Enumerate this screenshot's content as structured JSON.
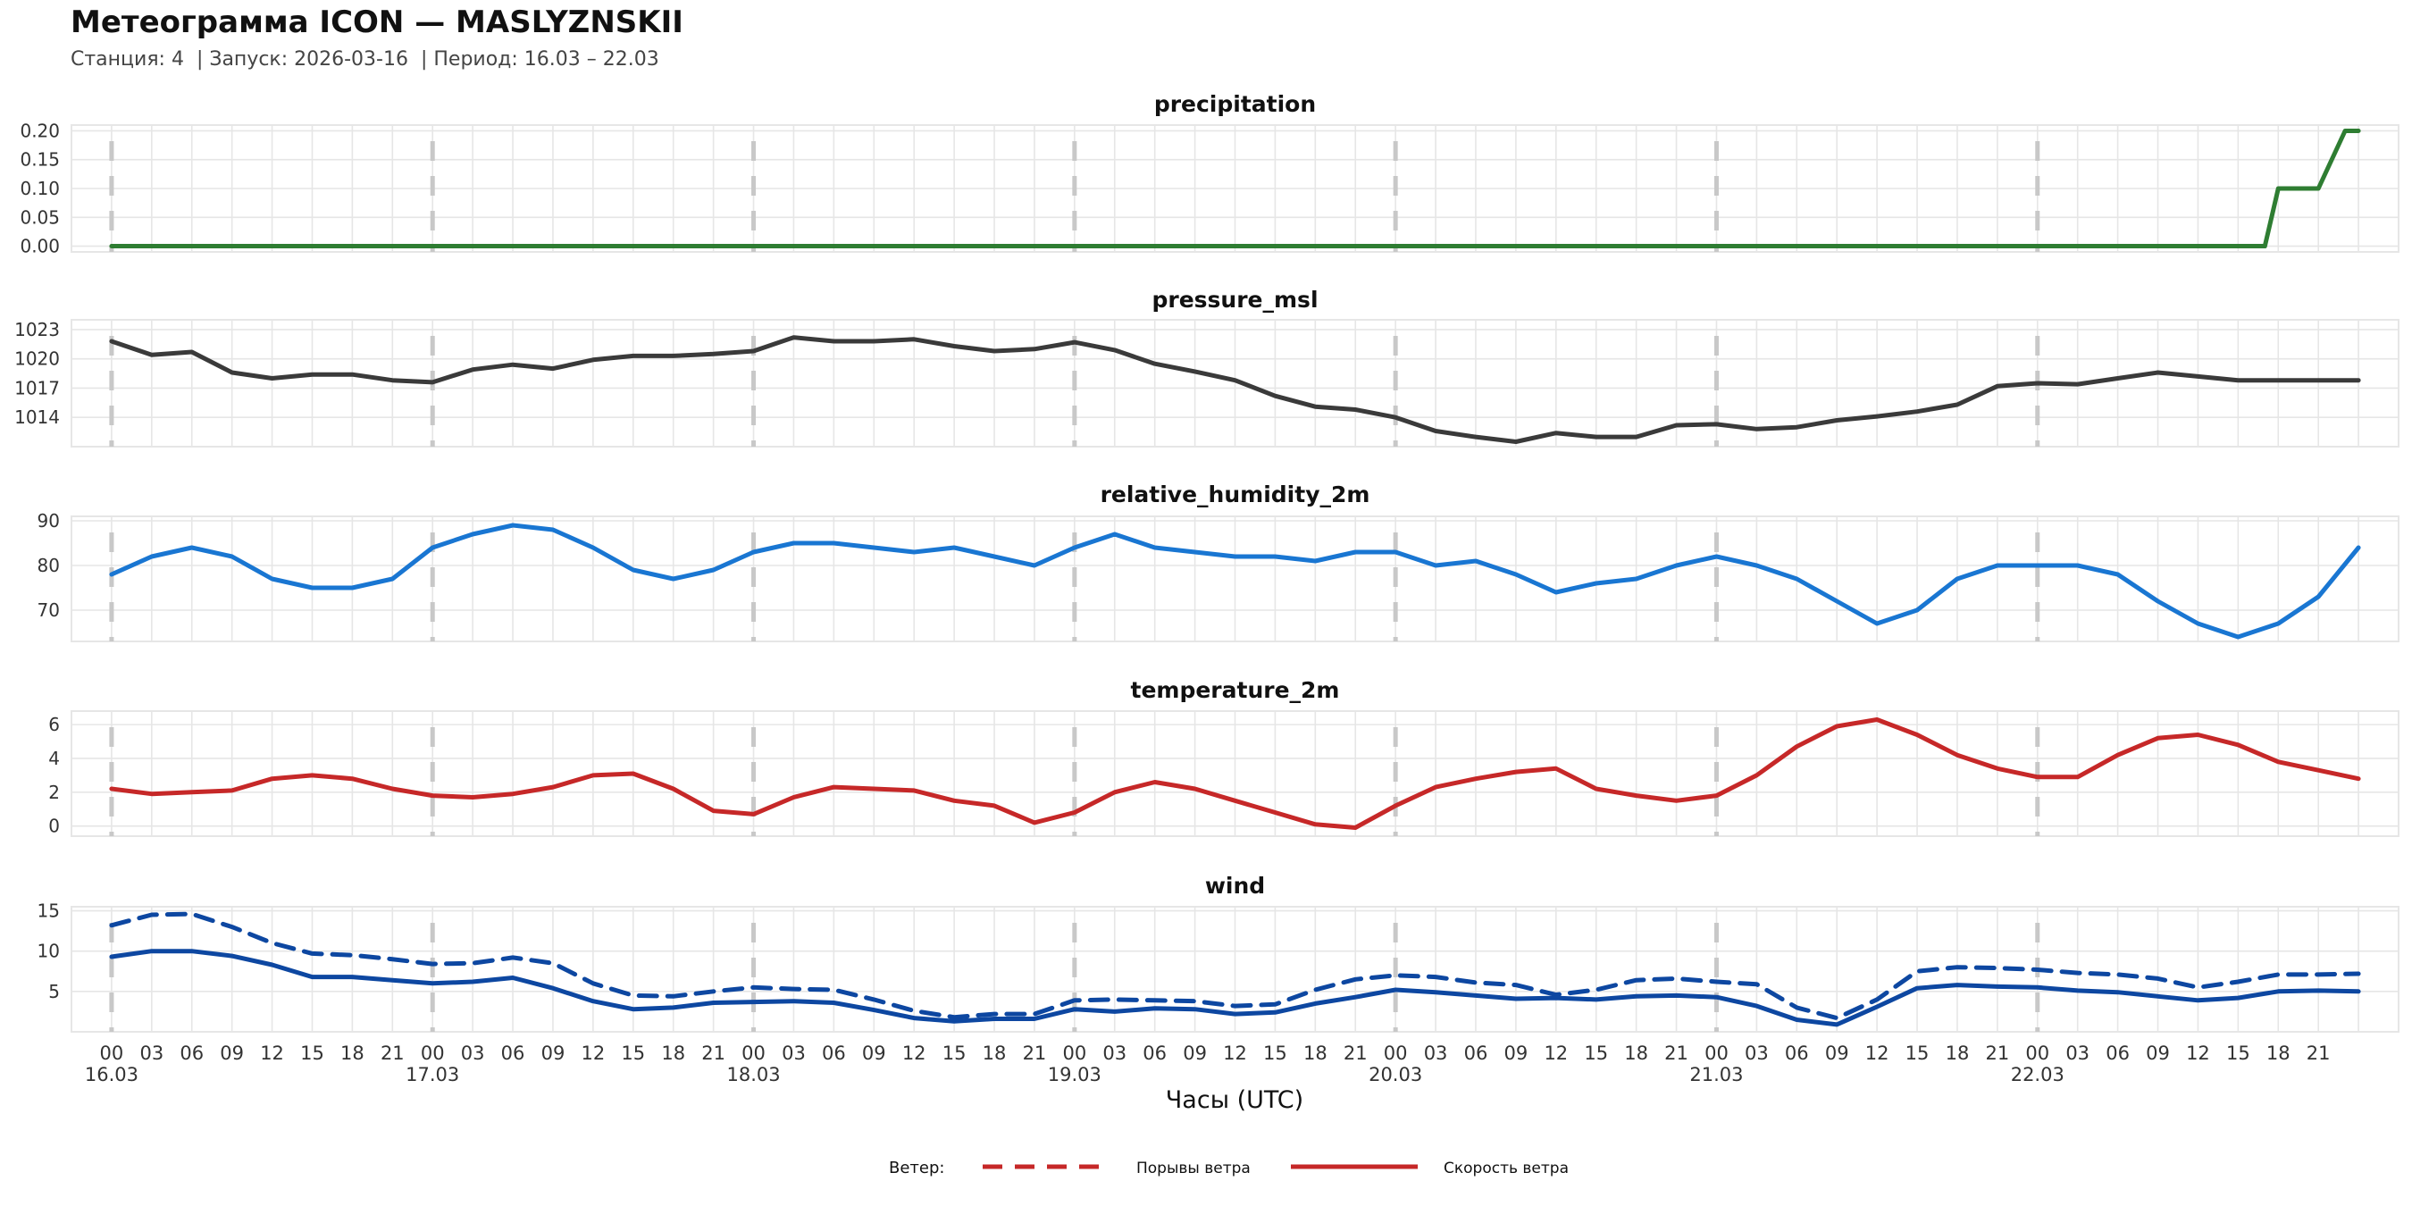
{
  "header": {
    "title": "Метеограмма ICON — MASLYZNSKII",
    "subtitle": "Станция: 4  | Запуск: 2026-03-16  | Период: 16.03 – 22.03"
  },
  "xaxis": {
    "label": "Часы (UTC)",
    "hour_ticks": [
      "00",
      "03",
      "06",
      "09",
      "12",
      "15",
      "18",
      "21",
      "00",
      "03",
      "06",
      "09",
      "12",
      "15",
      "18",
      "21",
      "00",
      "03",
      "06",
      "09",
      "12",
      "15",
      "18",
      "21",
      "00",
      "03",
      "06",
      "09",
      "12",
      "15",
      "18",
      "21",
      "00",
      "03",
      "06",
      "09",
      "12",
      "15",
      "18",
      "21",
      "00",
      "03",
      "06",
      "09",
      "12",
      "15",
      "18",
      "21",
      "00",
      "03",
      "06",
      "09",
      "12",
      "15",
      "18",
      "21"
    ],
    "date_labels": [
      "16.03",
      "17.03",
      "18.03",
      "19.03",
      "20.03",
      "21.03",
      "22.03"
    ]
  },
  "legend": {
    "title": "Ветер:",
    "items": [
      "Порывы ветра",
      "Скорость ветра"
    ]
  },
  "colors": {
    "precip": "#2e7d32",
    "pressure": "#3a3a3a",
    "humidity": "#1976d2",
    "temperature": "#c62828",
    "wind": "#0d47a1"
  },
  "chart_data": [
    {
      "type": "line",
      "title": "precipitation",
      "x_unit": "hours since 16.03 00 UTC",
      "ylim": [
        -0.01,
        0.21
      ],
      "yticks": [
        "0.00",
        "0.05",
        "0.10",
        "0.15",
        "0.20"
      ],
      "ytick_values": [
        0,
        0.05,
        0.1,
        0.15,
        0.2
      ],
      "series": [
        {
          "name": "precipitation",
          "x": [
            0,
            161,
            162,
            164,
            165,
            167,
            168
          ],
          "values": [
            0,
            0,
            0.1,
            0.1,
            0.1,
            0.2,
            0.2
          ]
        }
      ]
    },
    {
      "type": "line",
      "title": "pressure_msl",
      "ylim": [
        1011,
        1024
      ],
      "yticks": [
        "1014",
        "1017",
        "1020",
        "1023"
      ],
      "ytick_values": [
        1014,
        1017,
        1020,
        1023
      ],
      "series": [
        {
          "name": "pressure_msl",
          "x": [
            0,
            3,
            6,
            9,
            12,
            15,
            18,
            21,
            24,
            27,
            30,
            33,
            36,
            39,
            42,
            45,
            48,
            51,
            54,
            57,
            60,
            63,
            66,
            69,
            72,
            75,
            78,
            81,
            84,
            87,
            90,
            93,
            96,
            99,
            102,
            105,
            108,
            111,
            114,
            117,
            120,
            123,
            126,
            129,
            132,
            135,
            138,
            141,
            144,
            147,
            150,
            153,
            156,
            159,
            162,
            165,
            168
          ],
          "values": [
            1021.8,
            1020.4,
            1020.7,
            1018.6,
            1018.0,
            1018.4,
            1018.4,
            1017.8,
            1017.6,
            1018.9,
            1019.4,
            1019.0,
            1019.9,
            1020.3,
            1020.3,
            1020.5,
            1020.8,
            1022.2,
            1021.8,
            1021.8,
            1022.0,
            1021.3,
            1020.8,
            1021.0,
            1021.7,
            1020.9,
            1019.5,
            1018.7,
            1017.8,
            1016.2,
            1015.1,
            1014.8,
            1014.0,
            1012.6,
            1012.0,
            1011.5,
            1012.4,
            1012.0,
            1012.0,
            1013.2,
            1013.3,
            1012.8,
            1013.0,
            1013.7,
            1014.1,
            1014.6,
            1015.3,
            1017.2,
            1017.5,
            1017.4,
            1018.0,
            1018.6,
            1018.2,
            1017.8,
            1017.8,
            1017.8,
            1017.8
          ]
        }
      ]
    },
    {
      "type": "line",
      "title": "relative_humidity_2m",
      "ylim": [
        63,
        91
      ],
      "yticks": [
        "70",
        "80",
        "90"
      ],
      "ytick_values": [
        70,
        80,
        90
      ],
      "series": [
        {
          "name": "relative_humidity_2m",
          "x": [
            0,
            3,
            6,
            9,
            12,
            15,
            18,
            21,
            24,
            27,
            30,
            33,
            36,
            39,
            42,
            45,
            48,
            51,
            54,
            57,
            60,
            63,
            66,
            69,
            72,
            75,
            78,
            81,
            84,
            87,
            90,
            93,
            96,
            99,
            102,
            105,
            108,
            111,
            114,
            117,
            120,
            123,
            126,
            129,
            132,
            135,
            138,
            141,
            144,
            147,
            150,
            153,
            156,
            159,
            162,
            165,
            168
          ],
          "values": [
            78,
            82,
            84,
            82,
            77,
            75,
            75,
            77,
            84,
            87,
            89,
            88,
            84,
            79,
            77,
            79,
            83,
            85,
            85,
            84,
            83,
            84,
            82,
            80,
            84,
            87,
            84,
            83,
            82,
            82,
            81,
            83,
            83,
            80,
            81,
            78,
            74,
            76,
            77,
            80,
            82,
            80,
            77,
            72,
            67,
            70,
            77,
            80,
            80,
            80,
            78,
            72,
            67,
            64,
            67,
            73,
            84
          ]
        }
      ]
    },
    {
      "type": "line",
      "title": "temperature_2m",
      "ylim": [
        -0.6,
        6.8
      ],
      "yticks": [
        "0",
        "2",
        "4",
        "6"
      ],
      "ytick_values": [
        0,
        2,
        4,
        6
      ],
      "series": [
        {
          "name": "temperature_2m",
          "x": [
            0,
            3,
            6,
            9,
            12,
            15,
            18,
            21,
            24,
            27,
            30,
            33,
            36,
            39,
            42,
            45,
            48,
            51,
            54,
            57,
            60,
            63,
            66,
            69,
            72,
            75,
            78,
            81,
            84,
            87,
            90,
            93,
            96,
            99,
            102,
            105,
            108,
            111,
            114,
            117,
            120,
            123,
            126,
            129,
            132,
            135,
            138,
            141,
            144,
            147,
            150,
            153,
            156,
            159,
            162,
            165,
            168
          ],
          "values": [
            2.2,
            1.9,
            2.0,
            2.1,
            2.8,
            3.0,
            2.8,
            2.2,
            1.8,
            1.7,
            1.9,
            2.3,
            3.0,
            3.1,
            2.2,
            0.9,
            0.7,
            1.7,
            2.3,
            2.2,
            2.1,
            1.5,
            1.2,
            0.2,
            0.8,
            2.0,
            2.6,
            2.2,
            1.5,
            0.8,
            0.1,
            -0.1,
            1.2,
            2.3,
            2.8,
            3.2,
            3.4,
            2.2,
            1.8,
            1.5,
            1.8,
            3.0,
            4.7,
            5.9,
            6.3,
            5.4,
            4.2,
            3.4,
            2.9,
            2.9,
            4.2,
            5.2,
            5.4,
            4.8,
            3.8,
            3.3,
            2.8
          ]
        }
      ]
    },
    {
      "type": "line",
      "title": "wind",
      "ylim": [
        0,
        15.5
      ],
      "yticks": [
        "5",
        "10",
        "15"
      ],
      "ytick_values": [
        5,
        10,
        15
      ],
      "series": [
        {
          "name": "Порывы ветра",
          "dashed": true,
          "x": [
            0,
            3,
            6,
            9,
            12,
            15,
            18,
            21,
            24,
            27,
            30,
            33,
            36,
            39,
            42,
            45,
            48,
            51,
            54,
            57,
            60,
            63,
            66,
            69,
            72,
            75,
            78,
            81,
            84,
            87,
            90,
            93,
            96,
            99,
            102,
            105,
            108,
            111,
            114,
            117,
            120,
            123,
            126,
            129,
            132,
            135,
            138,
            141,
            144,
            147,
            150,
            153,
            156,
            159,
            162,
            165,
            168
          ],
          "values": [
            13.2,
            14.5,
            14.6,
            13.0,
            11.0,
            9.7,
            9.5,
            9.0,
            8.4,
            8.5,
            9.2,
            8.5,
            6.0,
            4.5,
            4.4,
            5.0,
            5.5,
            5.3,
            5.2,
            4.0,
            2.6,
            1.8,
            2.2,
            2.2,
            3.9,
            4.0,
            3.9,
            3.8,
            3.2,
            3.4,
            5.2,
            6.5,
            7.0,
            6.8,
            6.1,
            5.8,
            4.6,
            5.2,
            6.4,
            6.6,
            6.2,
            5.9,
            3.0,
            1.7,
            4.0,
            7.5,
            8.0,
            7.9,
            7.7,
            7.3,
            7.1,
            6.6,
            5.5,
            6.2,
            7.1,
            7.1,
            7.2
          ]
        },
        {
          "name": "Скорость ветра",
          "dashed": false,
          "x": [
            0,
            3,
            6,
            9,
            12,
            15,
            18,
            21,
            24,
            27,
            30,
            33,
            36,
            39,
            42,
            45,
            48,
            51,
            54,
            57,
            60,
            63,
            66,
            69,
            72,
            75,
            78,
            81,
            84,
            87,
            90,
            93,
            96,
            99,
            102,
            105,
            108,
            111,
            114,
            117,
            120,
            123,
            126,
            129,
            132,
            135,
            138,
            141,
            144,
            147,
            150,
            153,
            156,
            159,
            162,
            165,
            168
          ],
          "values": [
            9.3,
            10.0,
            10.0,
            9.4,
            8.3,
            6.8,
            6.8,
            6.4,
            6.0,
            6.2,
            6.7,
            5.4,
            3.8,
            2.8,
            3.0,
            3.6,
            3.7,
            3.8,
            3.6,
            2.7,
            1.7,
            1.3,
            1.6,
            1.6,
            2.8,
            2.5,
            2.9,
            2.8,
            2.2,
            2.4,
            3.5,
            4.3,
            5.2,
            4.9,
            4.5,
            4.1,
            4.2,
            4.0,
            4.4,
            4.5,
            4.3,
            3.2,
            1.5,
            0.9,
            3.1,
            5.4,
            5.8,
            5.6,
            5.5,
            5.1,
            4.9,
            4.4,
            3.9,
            4.2,
            5.0,
            5.1,
            5.0
          ]
        }
      ]
    }
  ]
}
